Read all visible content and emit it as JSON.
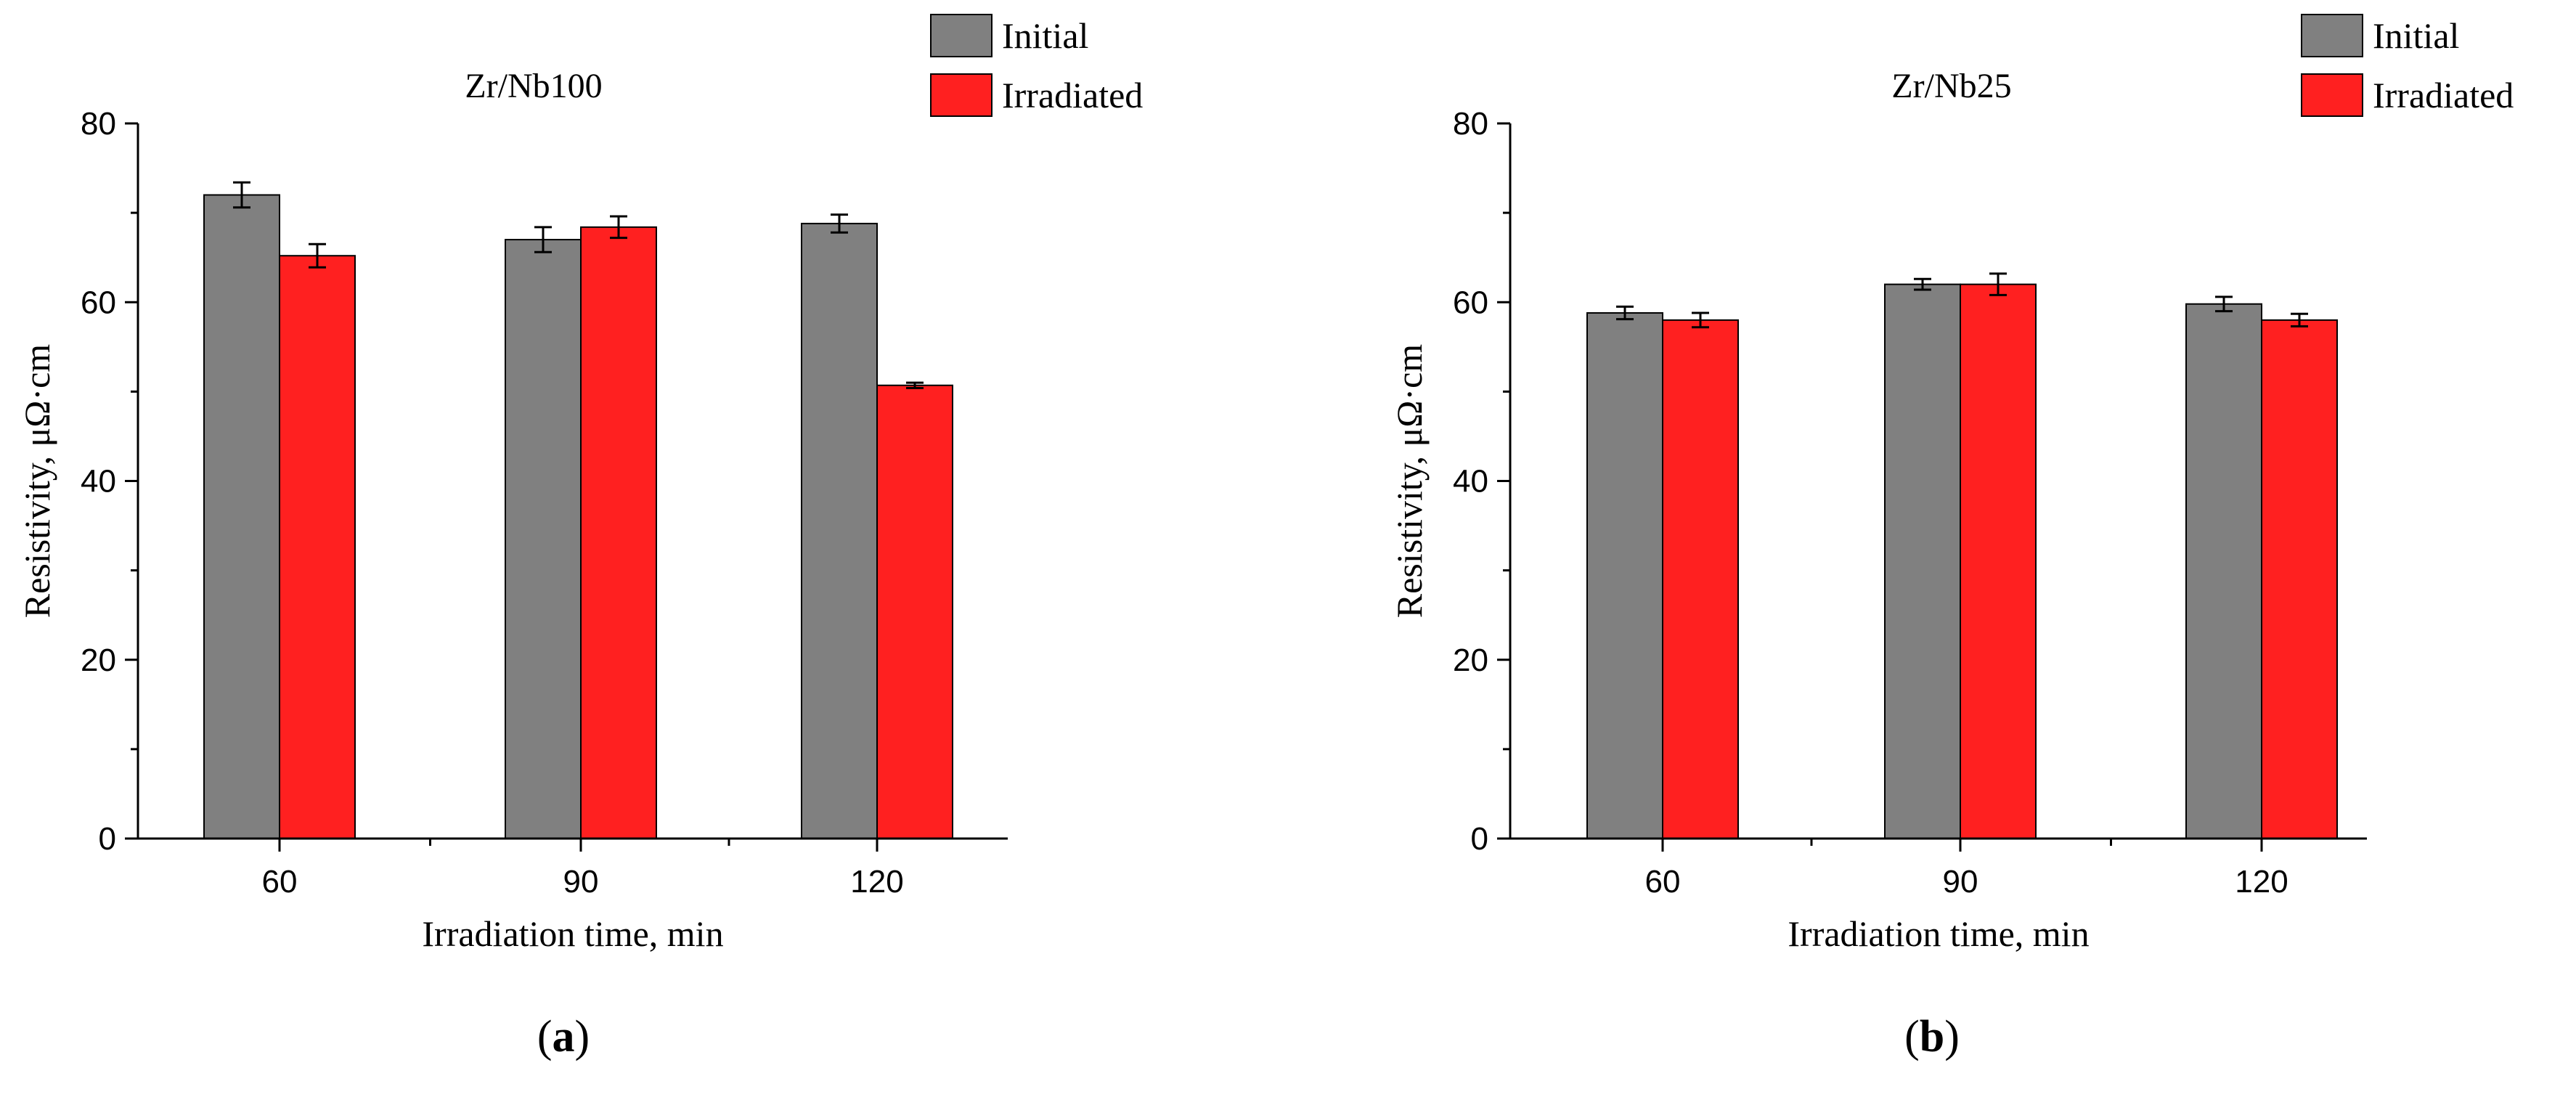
{
  "colors": {
    "initial": "#808080",
    "irradiated": "#ff2020",
    "axis": "#000000"
  },
  "legend": {
    "initial_label": "Initial",
    "irradiated_label": "Irradiated"
  },
  "chart_data": [
    {
      "type": "bar",
      "title": "Zr/Nb100",
      "xlabel": "Irradiation time, min",
      "ylabel": "Resistivity, μΩ·cm",
      "categories": [
        "60",
        "90",
        "120"
      ],
      "ylim": [
        0,
        80
      ],
      "yticks": [
        0,
        20,
        40,
        60,
        80
      ],
      "legend_position": "top-right",
      "series": [
        {
          "name": "Initial",
          "values": [
            72.0,
            67.0,
            68.8
          ],
          "errors": [
            1.4,
            1.4,
            1.0
          ]
        },
        {
          "name": "Irradiated",
          "values": [
            65.2,
            68.4,
            50.7
          ],
          "errors": [
            1.3,
            1.2,
            0.3
          ]
        }
      ],
      "sublabel": {
        "open": "(",
        "letter": "a",
        "close": ")"
      }
    },
    {
      "type": "bar",
      "title": "Zr/Nb25",
      "xlabel": "Irradiation time, min",
      "ylabel": "Resistivity, μΩ·cm",
      "categories": [
        "60",
        "90",
        "120"
      ],
      "ylim": [
        0,
        80
      ],
      "yticks": [
        0,
        20,
        40,
        60,
        80
      ],
      "legend_position": "top-right",
      "series": [
        {
          "name": "Initial",
          "values": [
            58.8,
            62.0,
            59.8
          ],
          "errors": [
            0.7,
            0.6,
            0.8
          ]
        },
        {
          "name": "Irradiated",
          "values": [
            58.0,
            62.0,
            58.0
          ],
          "errors": [
            0.8,
            1.2,
            0.7
          ]
        }
      ],
      "sublabel": {
        "open": "(",
        "letter": "b",
        "close": ")"
      }
    }
  ]
}
